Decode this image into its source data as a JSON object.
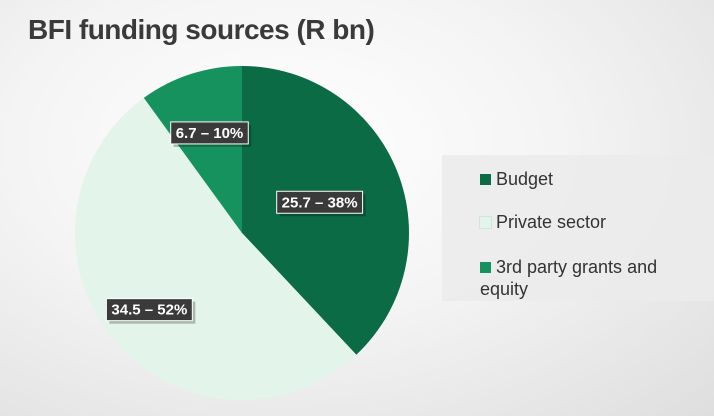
{
  "title": "BFI funding sources (R bn)",
  "chart_data": {
    "type": "pie",
    "title": "BFI funding sources (R bn)",
    "slices": [
      {
        "name": "Budget",
        "value": 25.7,
        "percent": 38,
        "label": "25.7 – 38%",
        "color": "#0b6b45"
      },
      {
        "name": "Private sector",
        "value": 34.5,
        "percent": 52,
        "label": "34.5 – 52%",
        "color": "#e3f4ea"
      },
      {
        "name": "3rd party grants and equity",
        "value": 6.7,
        "percent": 10,
        "label": "6.7 – 10%",
        "color": "#16925e"
      }
    ],
    "legend_position": "right",
    "start_angle_deg": 0,
    "direction": "clockwise"
  },
  "legend": {
    "items": [
      {
        "label": "Budget",
        "color": "#0b6b45"
      },
      {
        "label": "Private sector",
        "color": "#e3f4ea"
      },
      {
        "label": "3rd party grants and equity",
        "color": "#16925e"
      }
    ]
  }
}
